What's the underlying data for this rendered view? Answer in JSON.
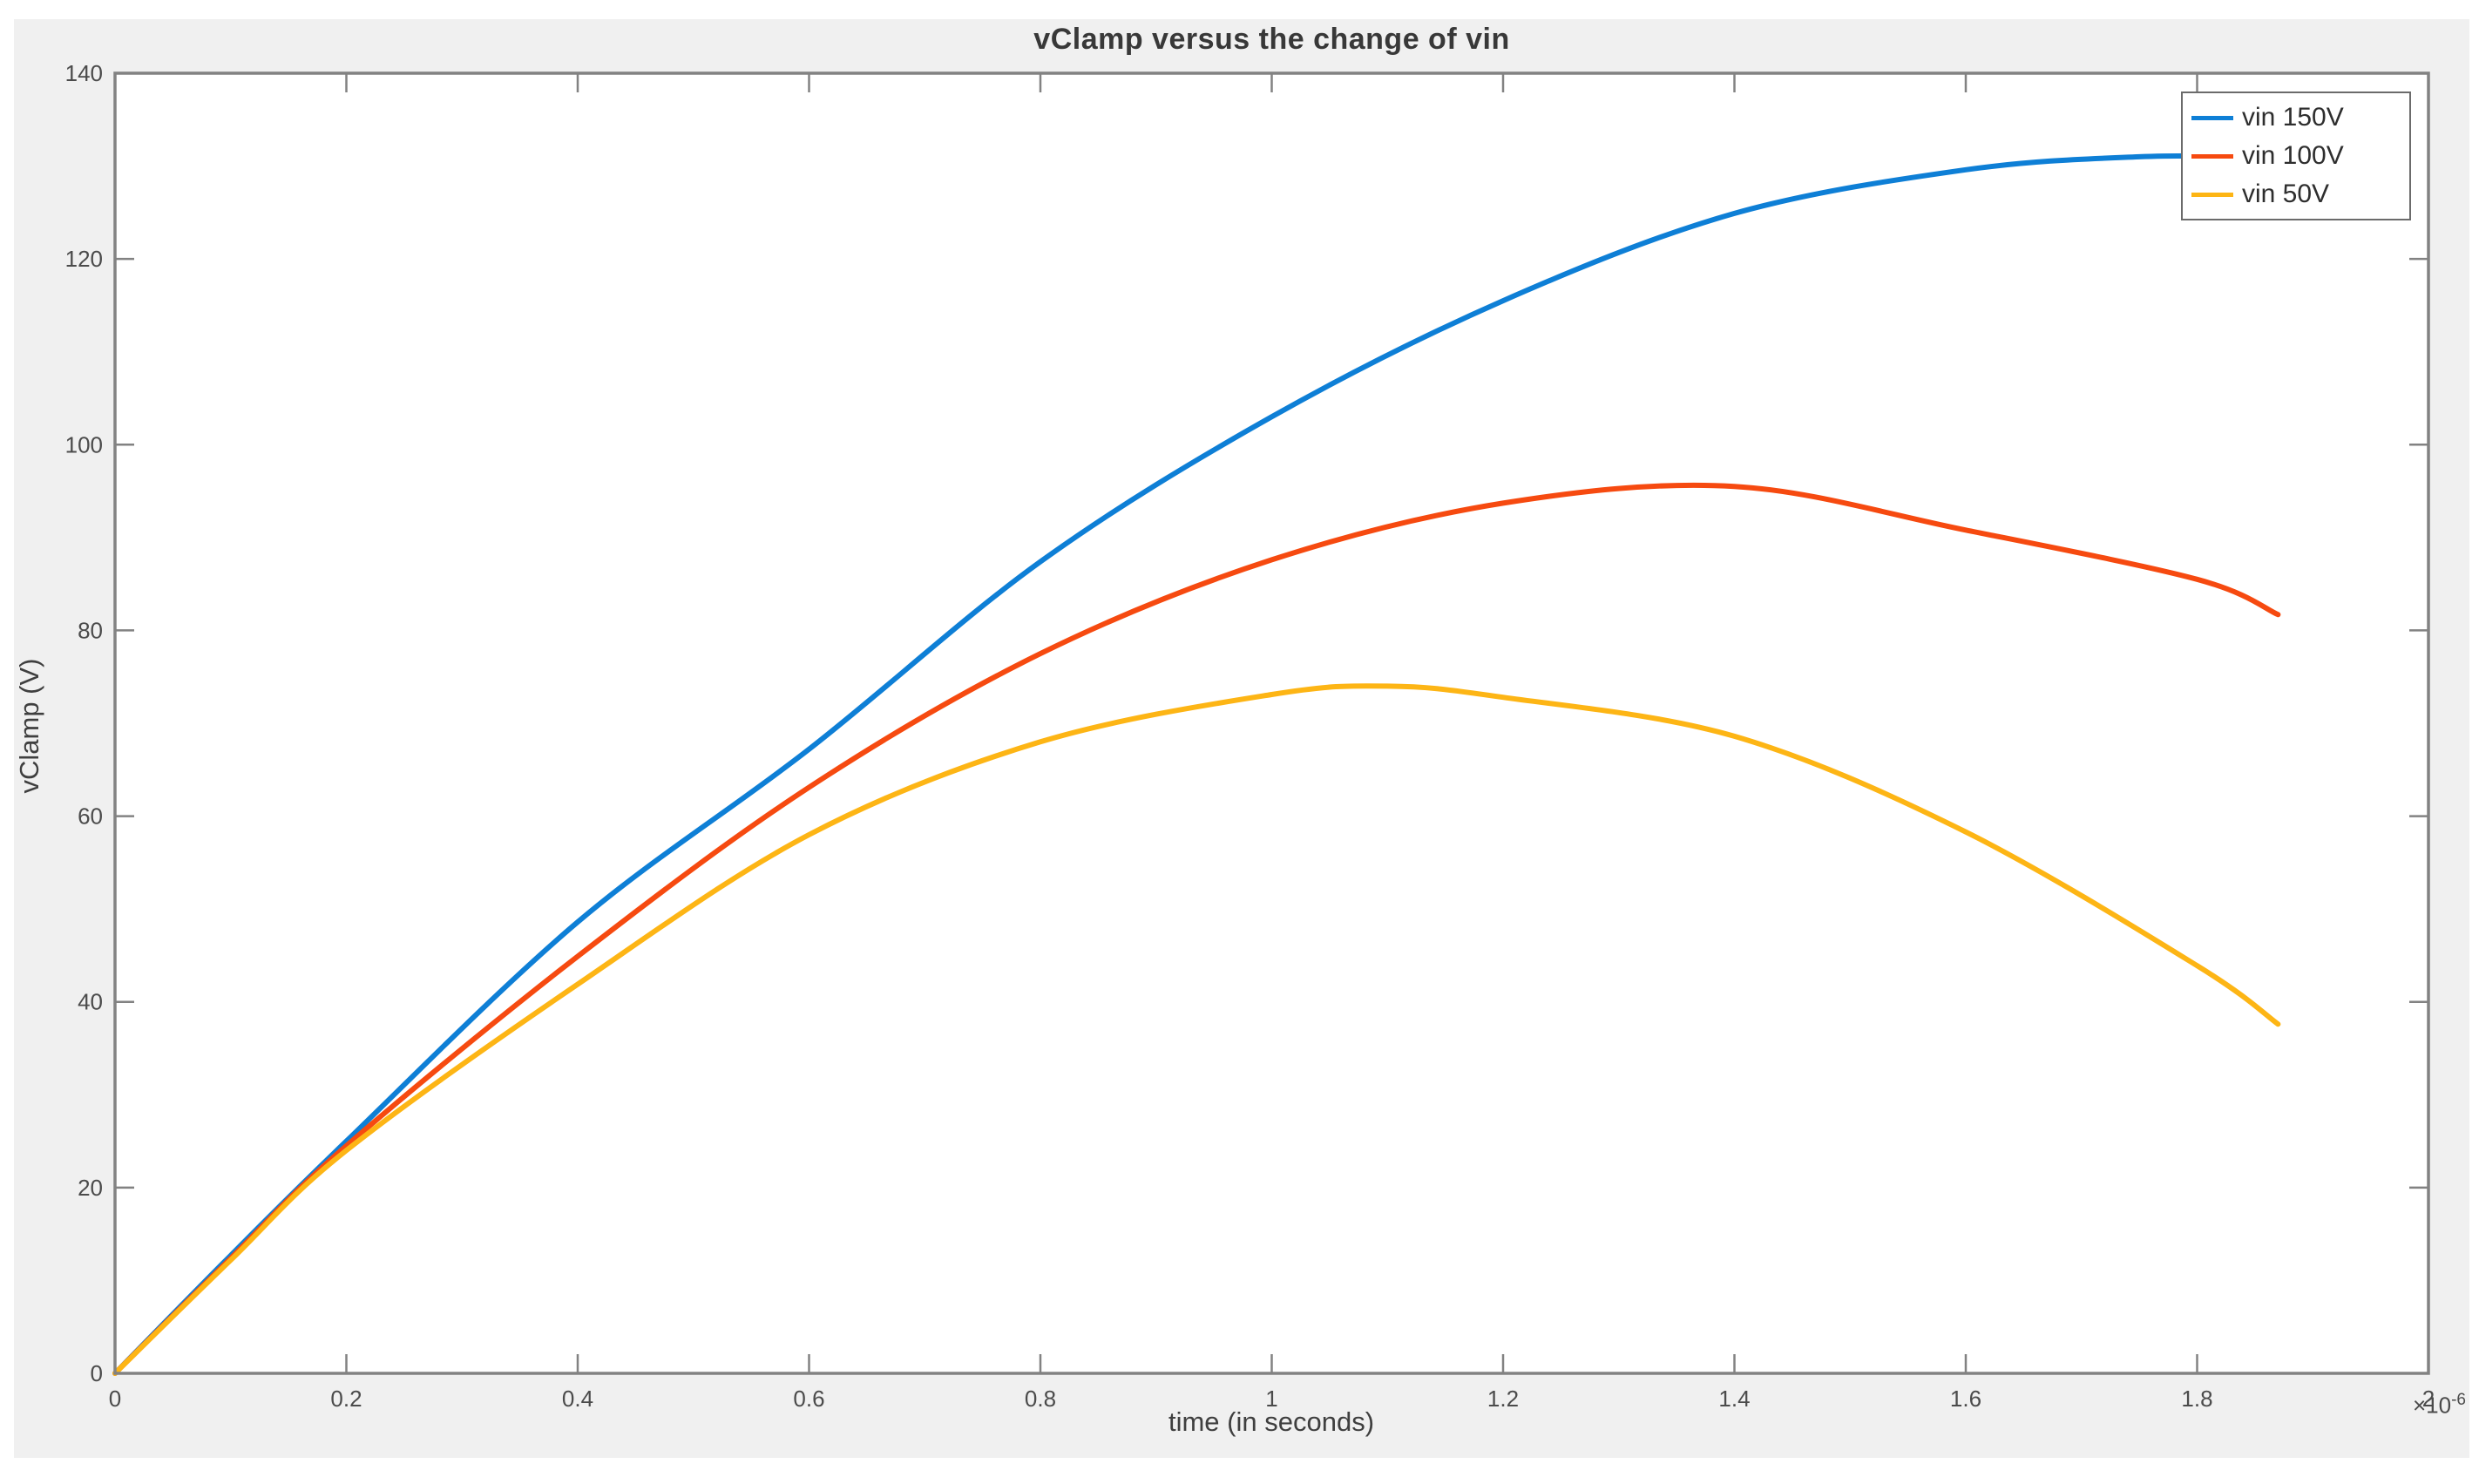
{
  "chart_data": {
    "type": "line",
    "title": "vClamp versus the change of vin",
    "xlabel": "time (in seconds)",
    "ylabel": "vClamp (V)",
    "x_exponent_prefix": "×10",
    "x_exponent": "-6",
    "xlim_display": [
      0,
      2
    ],
    "x_unit_scale": "1e-6",
    "ylim": [
      0,
      140
    ],
    "x_tick_labels": [
      "0",
      "0.2",
      "0.4",
      "0.6",
      "0.8",
      "1",
      "1.2",
      "1.4",
      "1.6",
      "1.8",
      "2"
    ],
    "x_tick_values": [
      0,
      0.2,
      0.4,
      0.6,
      0.8,
      1.0,
      1.2,
      1.4,
      1.6,
      1.8,
      2.0
    ],
    "y_tick_labels": [
      "0",
      "20",
      "40",
      "60",
      "80",
      "100",
      "120",
      "140"
    ],
    "y_tick_values": [
      0,
      20,
      40,
      60,
      80,
      100,
      120,
      140
    ],
    "grid": false,
    "legend_position": "top-right",
    "series": [
      {
        "name": "vin 150V",
        "color": "#0e7fd6",
        "x": [
          0,
          0.1,
          0.2,
          0.4,
          0.6,
          0.8,
          1.0,
          1.2,
          1.4,
          1.6,
          1.75,
          1.87
        ],
        "y": [
          0,
          12.7,
          25,
          48.6,
          67.2,
          87.4,
          103,
          115.5,
          124.9,
          129.6,
          131,
          131
        ]
      },
      {
        "name": "vin 100V",
        "color": "#f64a10",
        "x": [
          0,
          0.1,
          0.2,
          0.4,
          0.6,
          0.8,
          1.0,
          1.2,
          1.4,
          1.6,
          1.8,
          1.87
        ],
        "y": [
          0,
          12.4,
          24.5,
          44.9,
          63.1,
          77.5,
          87.6,
          93.7,
          95.5,
          90.8,
          85.5,
          81.7
        ]
      },
      {
        "name": "vin 50V",
        "color": "#fdb515",
        "x": [
          0,
          0.1,
          0.2,
          0.4,
          0.6,
          0.8,
          1.0,
          1.1,
          1.2,
          1.4,
          1.6,
          1.8,
          1.87
        ],
        "y": [
          0,
          12.2,
          24,
          41.9,
          58,
          68,
          73.1,
          74,
          72.8,
          68.6,
          58.3,
          43.9,
          37.6
        ]
      }
    ],
    "colors": {
      "figure_background": "#f0f0f0",
      "plot_background": "#ffffff",
      "axis": "#828282",
      "tick_label": "#4b4b4b"
    }
  }
}
